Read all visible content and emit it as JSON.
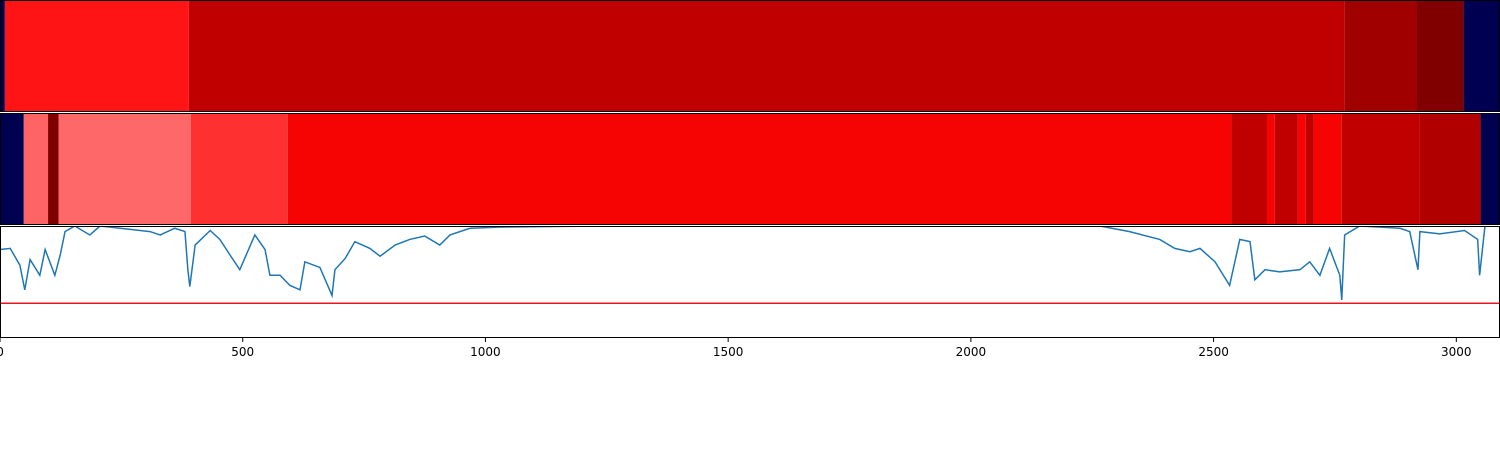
{
  "chart_data": [
    {
      "type": "strip",
      "xlim": [
        0,
        3090
      ],
      "segments": [
        {
          "start": 0,
          "end": 10,
          "color": "#000050"
        },
        {
          "start": 10,
          "end": 389,
          "color": "#fe1414"
        },
        {
          "start": 389,
          "end": 2770,
          "color": "#c00000"
        },
        {
          "start": 2770,
          "end": 2919,
          "color": "#a00000"
        },
        {
          "start": 2919,
          "end": 3015,
          "color": "#800000"
        },
        {
          "start": 3015,
          "end": 3090,
          "color": "#000050"
        }
      ]
    },
    {
      "type": "strip",
      "xlim": [
        0,
        3090
      ],
      "segments": [
        {
          "start": 0,
          "end": 49,
          "color": "#000050"
        },
        {
          "start": 49,
          "end": 99,
          "color": "#fe6464"
        },
        {
          "start": 99,
          "end": 121,
          "color": "#800000"
        },
        {
          "start": 121,
          "end": 393,
          "color": "#fe6868"
        },
        {
          "start": 393,
          "end": 593,
          "color": "#fe3030"
        },
        {
          "start": 593,
          "end": 2537,
          "color": "#f60404"
        },
        {
          "start": 2537,
          "end": 2610,
          "color": "#c00000"
        },
        {
          "start": 2610,
          "end": 2626,
          "color": "#f60404"
        },
        {
          "start": 2626,
          "end": 2673,
          "color": "#c00000"
        },
        {
          "start": 2673,
          "end": 2690,
          "color": "#f60404"
        },
        {
          "start": 2690,
          "end": 2706,
          "color": "#c00000"
        },
        {
          "start": 2706,
          "end": 2764,
          "color": "#f60404"
        },
        {
          "start": 2764,
          "end": 2925,
          "color": "#c00000"
        },
        {
          "start": 2925,
          "end": 3050,
          "color": "#b00000"
        },
        {
          "start": 3050,
          "end": 3090,
          "color": "#000050"
        }
      ]
    },
    {
      "type": "line",
      "xlim": [
        0,
        3090
      ],
      "ylim": [
        0,
        1
      ],
      "xticks": [
        0,
        500,
        1000,
        1500,
        2000,
        2500,
        3000
      ],
      "color": "#1f77b4",
      "hline": 0.31,
      "hline_color": "#e8141e",
      "x": [
        0,
        21,
        41,
        51,
        62,
        82,
        93,
        113,
        124,
        134,
        154,
        185,
        206,
        309,
        330,
        360,
        381,
        387,
        391,
        402,
        433,
        453,
        474,
        494,
        525,
        546,
        556,
        577,
        597,
        618,
        628,
        659,
        684,
        690,
        711,
        731,
        762,
        783,
        814,
        844,
        875,
        906,
        927,
        968,
        1030,
        1236,
        2266,
        2327,
        2389,
        2420,
        2451,
        2472,
        2503,
        2533,
        2554,
        2575,
        2585,
        2606,
        2636,
        2678,
        2698,
        2719,
        2739,
        2760,
        2764,
        2770,
        2801,
        2884,
        2904,
        2921,
        2925,
        2966,
        3017,
        3044,
        3048,
        3059
      ],
      "values": [
        0.79,
        0.8,
        0.65,
        0.43,
        0.7,
        0.56,
        0.79,
        0.56,
        0.74,
        0.95,
        1.0,
        0.92,
        1.0,
        0.95,
        0.92,
        0.98,
        0.95,
        0.61,
        0.46,
        0.83,
        0.96,
        0.88,
        0.74,
        0.61,
        0.92,
        0.79,
        0.56,
        0.56,
        0.47,
        0.43,
        0.68,
        0.63,
        0.38,
        0.61,
        0.71,
        0.86,
        0.8,
        0.73,
        0.83,
        0.88,
        0.91,
        0.83,
        0.92,
        0.98,
        0.99,
        1.0,
        1.0,
        0.95,
        0.88,
        0.8,
        0.77,
        0.8,
        0.68,
        0.47,
        0.88,
        0.86,
        0.52,
        0.61,
        0.59,
        0.61,
        0.68,
        0.56,
        0.8,
        0.56,
        0.34,
        0.92,
        1.0,
        0.98,
        0.95,
        0.61,
        0.95,
        0.93,
        0.96,
        0.88,
        0.56,
        1.0
      ]
    }
  ]
}
